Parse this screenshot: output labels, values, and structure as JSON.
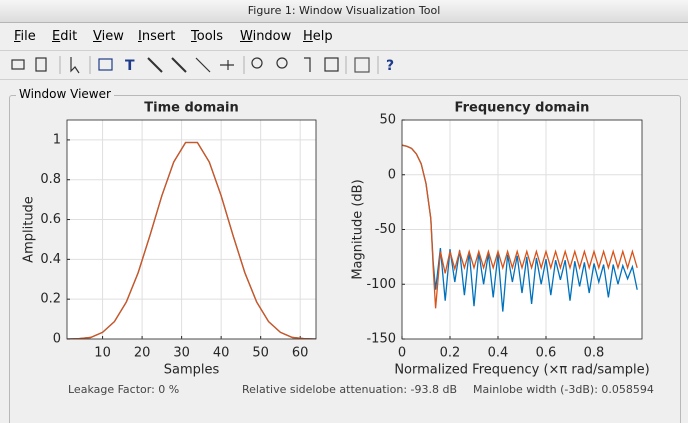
{
  "window": {
    "title": "Figure 1: Window Visualization Tool"
  },
  "menu": [
    "File",
    "Edit",
    "View",
    "Insert",
    "Tools",
    "Window",
    "Help"
  ],
  "panel": {
    "title": "Window Viewer"
  },
  "chart_data": [
    {
      "type": "line",
      "title": "Time domain",
      "xlabel": "Samples",
      "ylabel": "Amplitude",
      "x": [
        1,
        4,
        7,
        10,
        13,
        16,
        19,
        22,
        25,
        28,
        31,
        34,
        37,
        40,
        43,
        46,
        49,
        52,
        55,
        58,
        61,
        64
      ],
      "series": [
        {
          "color": "#0072bd",
          "values": [
            0,
            0.0016,
            0.0078,
            0.0334,
            0.0873,
            0.1852,
            0.3328,
            0.5206,
            0.72,
            0.889,
            0.987,
            0.987,
            0.889,
            0.72,
            0.5206,
            0.3328,
            0.1852,
            0.0873,
            0.0334,
            0.0078,
            0.0016,
            0
          ]
        },
        {
          "color": "#d95319",
          "values": [
            0,
            0.0016,
            0.0078,
            0.0334,
            0.0873,
            0.1852,
            0.3328,
            0.5206,
            0.72,
            0.889,
            0.987,
            0.987,
            0.889,
            0.72,
            0.5206,
            0.3328,
            0.1852,
            0.0873,
            0.0334,
            0.0078,
            0.0016,
            0
          ]
        }
      ],
      "xlim": [
        1,
        64
      ],
      "ylim": [
        0,
        1.1
      ],
      "xticks": [
        10,
        20,
        30,
        40,
        50,
        60
      ],
      "yticks": [
        0,
        0.2,
        0.4,
        0.6,
        0.8,
        1
      ],
      "grid": true
    },
    {
      "type": "line",
      "title": "Frequency domain",
      "xlabel": "Normalized Frequency  (×π rad/sample)",
      "ylabel": "Magnitude (dB)",
      "x": [
        0,
        0.02,
        0.04,
        0.06,
        0.08,
        0.1,
        0.12,
        0.13,
        0.14,
        0.16,
        0.18,
        0.2,
        0.22,
        0.24,
        0.26,
        0.28,
        0.3,
        0.32,
        0.34,
        0.36,
        0.38,
        0.4,
        0.42,
        0.44,
        0.46,
        0.48,
        0.5,
        0.52,
        0.54,
        0.56,
        0.58,
        0.6,
        0.62,
        0.64,
        0.66,
        0.68,
        0.7,
        0.72,
        0.74,
        0.76,
        0.78,
        0.8,
        0.82,
        0.84,
        0.86,
        0.88,
        0.9,
        0.92,
        0.94,
        0.96,
        0.98
      ],
      "series": [
        {
          "color": "#0072bd",
          "values": [
            27,
            26,
            24,
            19,
            10,
            -8,
            -40,
            -80,
            -105,
            -67,
            -115,
            -68,
            -98,
            -69,
            -110,
            -70,
            -120,
            -71,
            -100,
            -72,
            -112,
            -72,
            -125,
            -73,
            -98,
            -74,
            -108,
            -75,
            -118,
            -76,
            -100,
            -77,
            -110,
            -78,
            -96,
            -78,
            -115,
            -79,
            -102,
            -80,
            -108,
            -81,
            -98,
            -82,
            -112,
            -82,
            -100,
            -83,
            -95,
            -84,
            -105
          ]
        },
        {
          "color": "#d95319",
          "values": [
            27,
            26,
            24,
            19,
            10,
            -8,
            -40,
            -85,
            -122,
            -70,
            -90,
            -70,
            -86,
            -70,
            -85,
            -70,
            -85,
            -70,
            -85,
            -70,
            -85,
            -70,
            -85,
            -70,
            -85,
            -70,
            -85,
            -70,
            -85,
            -70,
            -85,
            -70,
            -85,
            -70,
            -85,
            -70,
            -85,
            -70,
            -85,
            -70,
            -85,
            -70,
            -85,
            -70,
            -85,
            -70,
            -85,
            -70,
            -85,
            -70,
            -85
          ]
        }
      ],
      "xlim": [
        0,
        1
      ],
      "ylim": [
        -150,
        50
      ],
      "xticks": [
        0,
        0.2,
        0.4,
        0.6,
        0.8
      ],
      "yticks": [
        -150,
        -100,
        -50,
        0,
        50
      ],
      "grid": true
    }
  ],
  "footer": {
    "leakage": "Leakage Factor: 0 %",
    "sidelobe": "Relative sidelobe attenuation: -93.8 dB",
    "mainlobe": "Mainlobe width (-3dB): 0.058594"
  }
}
